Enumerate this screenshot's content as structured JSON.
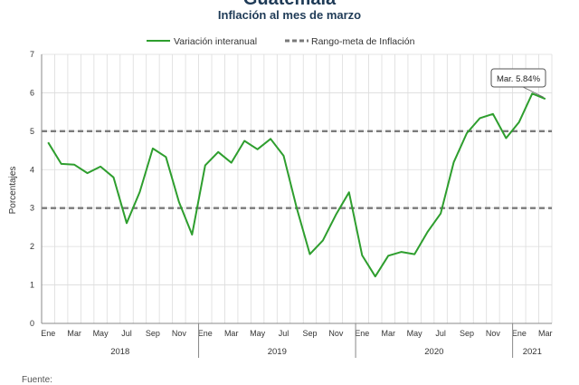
{
  "header": {
    "title": "Guatemala",
    "subtitle": "Inflación al mes de marzo"
  },
  "footer": {
    "source": "Fuente:"
  },
  "colors": {
    "line": "#2e9e2e",
    "target": "#7a7a7a",
    "grid": "#dcdcdc"
  },
  "chart_data": {
    "type": "line",
    "ylabel": "Porcentajes",
    "ylim": [
      0,
      7
    ],
    "yticks": [
      0,
      1,
      2,
      3,
      4,
      5,
      6,
      7
    ],
    "grid": true,
    "legend_position": "top-center",
    "x": [
      "2018-01",
      "2018-02",
      "2018-03",
      "2018-04",
      "2018-05",
      "2018-06",
      "2018-07",
      "2018-08",
      "2018-09",
      "2018-10",
      "2018-11",
      "2018-12",
      "2019-01",
      "2019-02",
      "2019-03",
      "2019-04",
      "2019-05",
      "2019-06",
      "2019-07",
      "2019-08",
      "2019-09",
      "2019-10",
      "2019-11",
      "2019-12",
      "2020-01",
      "2020-02",
      "2020-03",
      "2020-04",
      "2020-05",
      "2020-06",
      "2020-07",
      "2020-08",
      "2020-09",
      "2020-10",
      "2020-11",
      "2020-12",
      "2021-01",
      "2021-02",
      "2021-03"
    ],
    "x_tick_labels": [
      "Ene",
      "",
      "Mar",
      "",
      "May",
      "",
      "Jul",
      "",
      "Sep",
      "",
      "Nov",
      "",
      "Ene",
      "",
      "Mar",
      "",
      "May",
      "",
      "Jul",
      "",
      "Sep",
      "",
      "Nov",
      "",
      "Ene",
      "",
      "Mar",
      "",
      "May",
      "",
      "Jul",
      "",
      "Sep",
      "",
      "Nov",
      "",
      "Ene",
      "",
      "Mar"
    ],
    "years": [
      "2018",
      "2019",
      "2020",
      "2021"
    ],
    "series": [
      {
        "name": "Variación interanual",
        "values": [
          4.71,
          4.15,
          4.13,
          3.91,
          4.08,
          3.8,
          2.61,
          3.42,
          4.55,
          4.33,
          3.16,
          2.31,
          4.11,
          4.46,
          4.18,
          4.75,
          4.53,
          4.8,
          4.36,
          3.0,
          1.8,
          2.16,
          2.83,
          3.41,
          1.77,
          1.22,
          1.76,
          1.86,
          1.8,
          2.38,
          2.86,
          4.19,
          4.95,
          5.34,
          5.45,
          4.82,
          5.24,
          5.98,
          5.84
        ]
      },
      {
        "name": "Rango-meta de Inflación",
        "lines": [
          3,
          5
        ]
      }
    ],
    "annotation": {
      "label": "Mar. 5.84%",
      "index": 38
    }
  }
}
